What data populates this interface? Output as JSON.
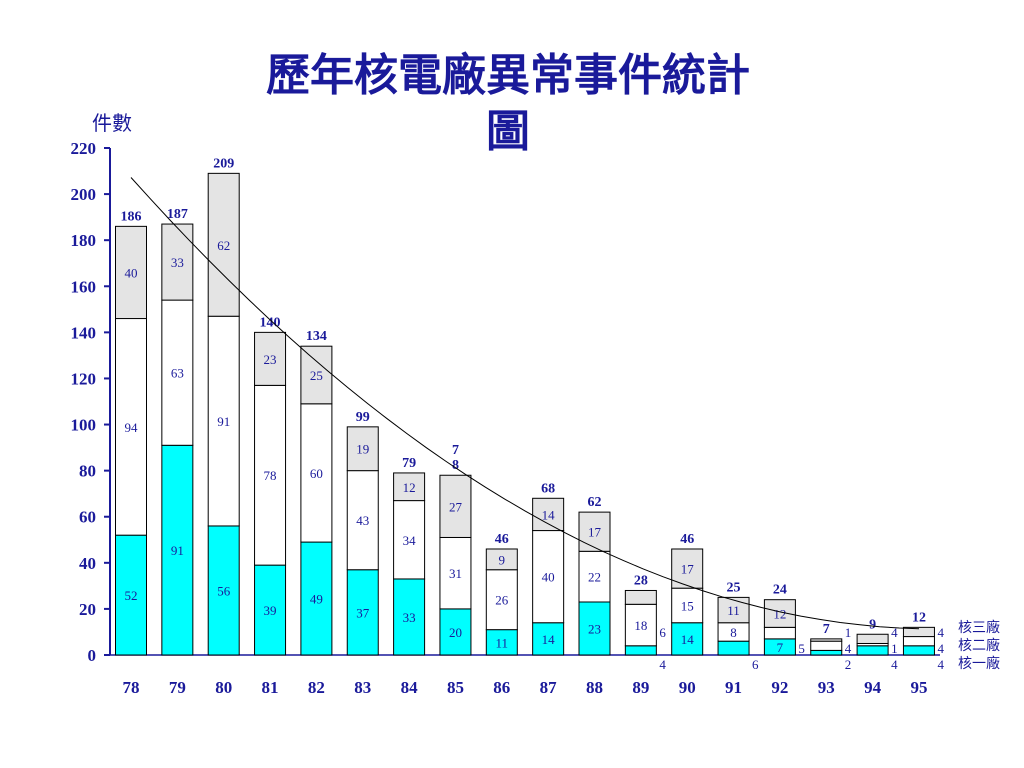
{
  "page": {
    "title_line1": "歷年核電廠異常事件統計",
    "title_line2": "圖"
  },
  "chart_data": {
    "type": "bar",
    "stacked": true,
    "title": "歷年核電廠異常事件統計圖",
    "ylabel": "件數",
    "xlabel": "",
    "ylim": [
      0,
      220
    ],
    "yticks": [
      0,
      20,
      40,
      60,
      80,
      100,
      120,
      140,
      160,
      180,
      200,
      220
    ],
    "categories": [
      "78",
      "79",
      "80",
      "81",
      "82",
      "83",
      "84",
      "85",
      "86",
      "87",
      "88",
      "89",
      "90",
      "91",
      "92",
      "93",
      "94",
      "95"
    ],
    "series": [
      {
        "name": "核一廠",
        "color": "#00ffff",
        "values": [
          52,
          91,
          56,
          39,
          49,
          37,
          33,
          20,
          11,
          14,
          23,
          4,
          14,
          6,
          7,
          2,
          4,
          4
        ],
        "labels": [
          "52",
          "91",
          "56",
          "39",
          "49",
          "37",
          "33",
          "20",
          "11",
          "14",
          "23",
          "4",
          "14",
          "6",
          "7",
          "2",
          "4",
          "4"
        ]
      },
      {
        "name": "核二廠",
        "color": "#ffffff",
        "values": [
          94,
          63,
          91,
          78,
          60,
          43,
          34,
          31,
          26,
          40,
          22,
          18,
          15,
          8,
          5,
          4,
          1,
          4
        ],
        "labels": [
          "94",
          "63",
          "91",
          "78",
          "60",
          "43",
          "34",
          "31",
          "26",
          "40",
          "22",
          "18",
          "15",
          "8",
          "5",
          "4",
          "1",
          "4"
        ]
      },
      {
        "name": "核三廠",
        "color": "#e4e4e4",
        "values": [
          40,
          33,
          62,
          23,
          25,
          19,
          12,
          27,
          9,
          14,
          17,
          6,
          17,
          11,
          12,
          1,
          4,
          4
        ],
        "labels": [
          "40",
          "33",
          "62",
          "23",
          "25",
          "19",
          "12",
          "27",
          "9",
          "14",
          "17",
          "6",
          "17",
          "11",
          "12",
          "1",
          "4",
          "4"
        ]
      }
    ],
    "totals": [
      "186",
      "187",
      "209",
      "140",
      "134",
      "99",
      "79",
      "7\n8",
      "46",
      "68",
      "62",
      "28",
      "46",
      "25",
      "24",
      "7",
      "9",
      "12"
    ],
    "trendline": "polynomial",
    "legend_position": "right-bottom",
    "grid": false
  }
}
